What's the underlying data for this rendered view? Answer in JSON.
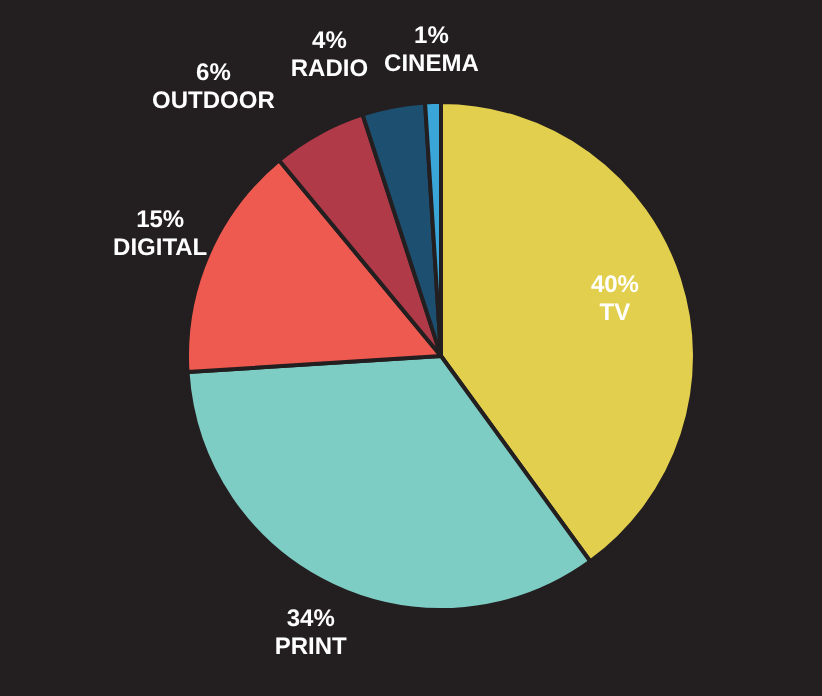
{
  "chart_data": {
    "type": "pie",
    "categories": [
      "TV",
      "PRINT",
      "DIGITAL",
      "OUTDOOR",
      "RADIO",
      "CINEMA"
    ],
    "values": [
      40,
      34,
      15,
      6,
      4,
      1
    ],
    "value_labels": [
      "40%",
      "34%",
      "15%",
      "6%",
      "4%",
      "1%"
    ],
    "colors": [
      "#e3cf4e",
      "#7ecdc4",
      "#ef5a50",
      "#b03a48",
      "#1d4f70",
      "#3aa6d8"
    ],
    "legend": false
  }
}
